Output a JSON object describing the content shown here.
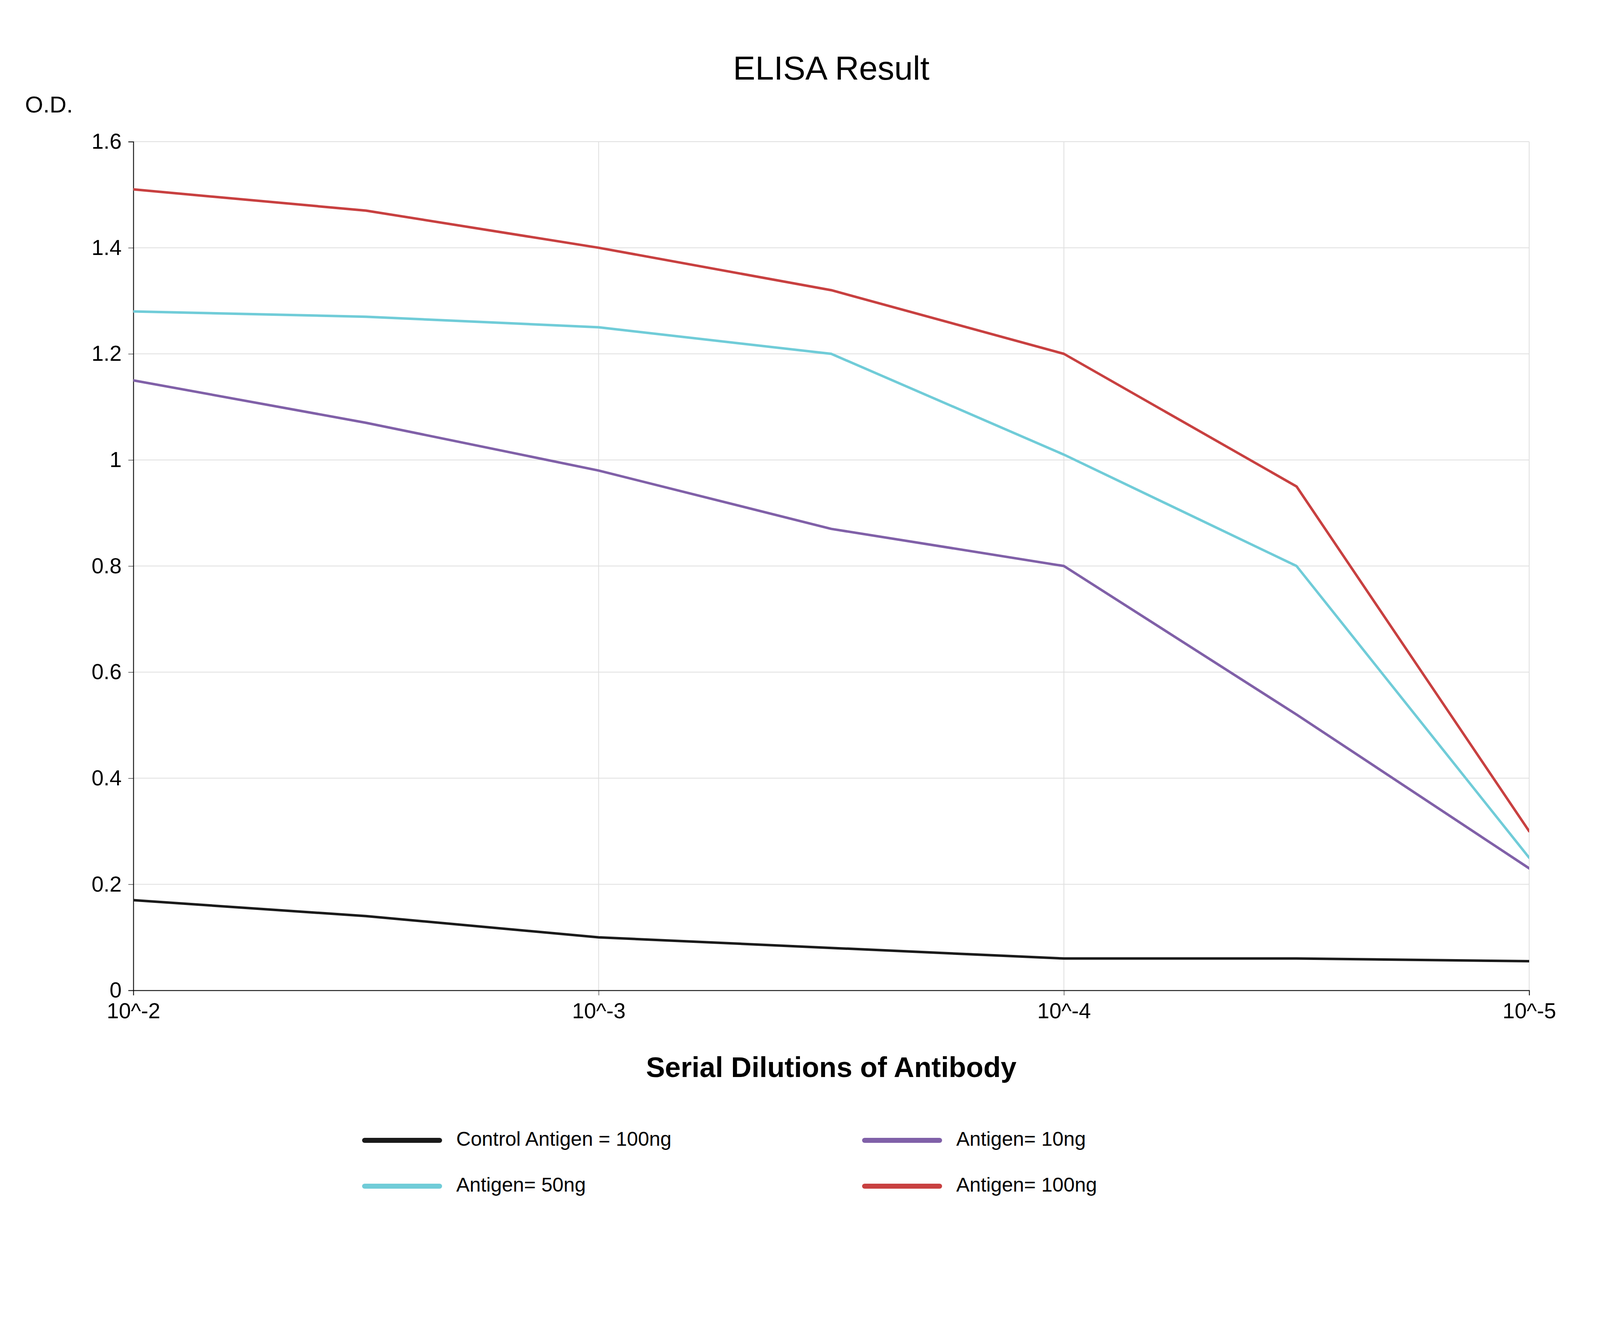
{
  "chart_data": {
    "type": "line",
    "title": "ELISA Result",
    "y_label": "O.D.",
    "x_label": "Serial  Dilutions  of  Antibody",
    "x": [
      -2,
      -2.5,
      -3,
      -3.5,
      -4,
      -4.5,
      -5
    ],
    "xlim": [
      -2,
      -5
    ],
    "xticks": [
      {
        "value": -2,
        "label": "10^-2"
      },
      {
        "value": -3,
        "label": "10^-3"
      },
      {
        "value": -4,
        "label": "10^-4"
      },
      {
        "value": -5,
        "label": "10^-5"
      }
    ],
    "ylim": [
      0,
      1.6
    ],
    "yticks": [
      0,
      0.2,
      0.4,
      0.6,
      0.8,
      1,
      1.2,
      1.4,
      1.6
    ],
    "grid": true,
    "legend": "bottom",
    "series": [
      {
        "name": "Control Antigen = 100ng",
        "color": "#1a1a1a",
        "values": [
          0.17,
          0.14,
          0.1,
          0.08,
          0.06,
          0.06,
          0.055
        ]
      },
      {
        "name": "Antigen= 10ng",
        "color": "#8060a8",
        "values": [
          1.15,
          1.07,
          0.98,
          0.87,
          0.8,
          0.52,
          0.23
        ]
      },
      {
        "name": "Antigen= 50ng",
        "color": "#70ccd8",
        "values": [
          1.28,
          1.27,
          1.25,
          1.2,
          1.01,
          0.8,
          0.25
        ]
      },
      {
        "name": "Antigen= 100ng",
        "color": "#c84040",
        "values": [
          1.51,
          1.47,
          1.4,
          1.32,
          1.2,
          0.95,
          0.3
        ]
      }
    ]
  }
}
